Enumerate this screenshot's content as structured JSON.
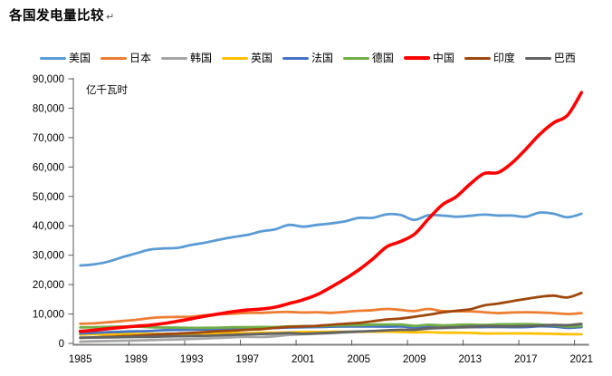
{
  "page": {
    "title": "各国发电量比较",
    "paragraph_mark": "↵"
  },
  "chart_data": {
    "type": "line",
    "title": "各国发电量比较",
    "unit_label": "亿千瓦时",
    "grid": false,
    "legend_position": "top",
    "smoothed_lines": true,
    "years": [
      1985,
      1986,
      1987,
      1988,
      1989,
      1990,
      1991,
      1992,
      1993,
      1994,
      1995,
      1996,
      1997,
      1998,
      1999,
      2000,
      2001,
      2002,
      2003,
      2004,
      2005,
      2006,
      2007,
      2008,
      2009,
      2010,
      2011,
      2012,
      2013,
      2014,
      2015,
      2016,
      2017,
      2018,
      2019,
      2020,
      2021
    ],
    "x_tick_labels": [
      "1985",
      "1989",
      "1993",
      "1997",
      "2001",
      "2005",
      "2009",
      "2013",
      "2017",
      "2021"
    ],
    "ylim": [
      0,
      90000
    ],
    "y_tick_values": [
      0,
      10000,
      20000,
      30000,
      40000,
      50000,
      60000,
      70000,
      80000,
      90000
    ],
    "y_tick_labels": [
      "0",
      "10,000",
      "20,000",
      "30,000",
      "40,000",
      "50,000",
      "60,000",
      "70,000",
      "80,000",
      "90,000"
    ],
    "axis_colors": {
      "y_axis": "#595959",
      "x_axis": "#808080",
      "tick": "#595959"
    },
    "series": [
      {
        "name": "美国",
        "color": "#5B9BD5",
        "stroke_width": 2.8,
        "values": [
          26500,
          26900,
          27800,
          29300,
          30600,
          31900,
          32300,
          32500,
          33500,
          34300,
          35300,
          36200,
          36900,
          38100,
          38800,
          40300,
          39700,
          40300,
          40800,
          41500,
          42700,
          42700,
          43900,
          43700,
          42000,
          43600,
          43500,
          43100,
          43400,
          43800,
          43500,
          43500,
          43100,
          44500,
          44100,
          42900,
          44100
        ]
      },
      {
        "name": "日本",
        "color": "#ED7D31",
        "stroke_width": 2.8,
        "values": [
          6700,
          6800,
          7200,
          7600,
          8000,
          8600,
          8900,
          9000,
          9100,
          9600,
          9900,
          10100,
          10400,
          10400,
          10600,
          10700,
          10500,
          10600,
          10400,
          10700,
          11100,
          11300,
          11700,
          11400,
          11000,
          11700,
          11000,
          10900,
          10900,
          10600,
          10300,
          10500,
          10600,
          10500,
          10300,
          10000,
          10300
        ]
      },
      {
        "name": "韩国",
        "color": "#A5A5A5",
        "stroke_width": 2.8,
        "values": [
          600,
          700,
          800,
          900,
          1000,
          1100,
          1250,
          1350,
          1500,
          1700,
          1850,
          2100,
          2250,
          2150,
          2400,
          2900,
          3100,
          3300,
          3450,
          3700,
          3900,
          4050,
          4300,
          4450,
          4550,
          5000,
          5200,
          5300,
          5400,
          5500,
          5500,
          5600,
          5700,
          5900,
          5800,
          5500,
          5800
        ]
      },
      {
        "name": "英国",
        "color": "#FFC000",
        "stroke_width": 2.8,
        "values": [
          3000,
          3100,
          3100,
          3200,
          3200,
          3200,
          3250,
          3200,
          3230,
          3250,
          3340,
          3500,
          3460,
          3600,
          3680,
          3740,
          3850,
          3870,
          3980,
          3940,
          3980,
          3970,
          3970,
          3890,
          3770,
          3820,
          3680,
          3630,
          3590,
          3390,
          3390,
          3390,
          3380,
          3330,
          3230,
          3120,
          3100
        ]
      },
      {
        "name": "法国",
        "color": "#4472C4",
        "stroke_width": 2.8,
        "values": [
          3400,
          3600,
          3800,
          3950,
          4100,
          4200,
          4500,
          4600,
          4700,
          4760,
          4930,
          5130,
          5050,
          5110,
          5230,
          5400,
          5500,
          5560,
          5660,
          5740,
          5750,
          5740,
          5690,
          5740,
          5430,
          5690,
          5620,
          5610,
          5720,
          5630,
          5680,
          5530,
          5540,
          5820,
          5710,
          5300,
          5550
        ]
      },
      {
        "name": "德国",
        "color": "#70AD47",
        "stroke_width": 2.8,
        "values": [
          5470,
          5500,
          5600,
          5700,
          5700,
          5500,
          5400,
          5370,
          5280,
          5290,
          5370,
          5500,
          5520,
          5570,
          5560,
          5770,
          5860,
          5870,
          6080,
          6170,
          6230,
          6390,
          6410,
          6410,
          5960,
          6330,
          6130,
          6300,
          6390,
          6270,
          6480,
          6490,
          6540,
          6430,
          6090,
          5740,
          5880
        ]
      },
      {
        "name": "中国",
        "color": "#FF0000",
        "stroke_width": 3.6,
        "values": [
          4100,
          4500,
          5000,
          5450,
          5850,
          6210,
          6780,
          7540,
          8390,
          9280,
          10070,
          10810,
          11360,
          11670,
          12330,
          13560,
          14810,
          16540,
          19110,
          21870,
          25000,
          28660,
          32820,
          34670,
          37150,
          42280,
          47130,
          49880,
          54200,
          57800,
          58100,
          61330,
          66040,
          71120,
          75040,
          77620,
          85330
        ]
      },
      {
        "name": "印度",
        "color": "#9E480E",
        "stroke_width": 2.8,
        "values": [
          1870,
          2030,
          2210,
          2410,
          2620,
          2890,
          3150,
          3350,
          3560,
          3850,
          4170,
          4360,
          4630,
          4850,
          5270,
          5610,
          5790,
          5980,
          6330,
          6670,
          6980,
          7520,
          8130,
          8430,
          9070,
          9740,
          10510,
          11100,
          11600,
          12910,
          13540,
          14340,
          15110,
          15830,
          16230,
          15620,
          17150
        ]
      },
      {
        "name": "巴西",
        "color": "#636363",
        "stroke_width": 2.8,
        "values": [
          1930,
          2010,
          2020,
          2140,
          2210,
          2230,
          2340,
          2420,
          2520,
          2600,
          2750,
          2890,
          3080,
          3210,
          3340,
          3490,
          3280,
          3450,
          3640,
          3870,
          4030,
          4190,
          4450,
          4630,
          4660,
          5160,
          5310,
          5520,
          5700,
          5900,
          5810,
          5790,
          5880,
          6010,
          6260,
          6210,
          6630
        ]
      }
    ]
  }
}
